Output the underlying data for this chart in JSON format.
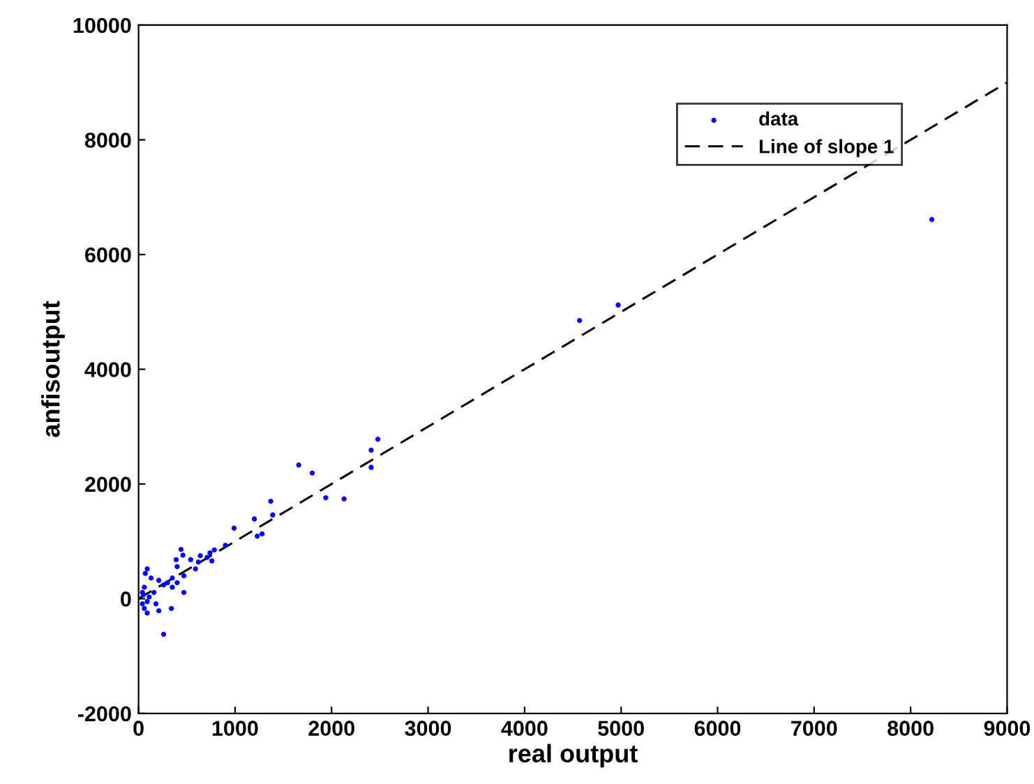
{
  "chart_data": {
    "type": "scatter",
    "xlabel": "real output",
    "ylabel": "anfisoutput",
    "xlim": [
      0,
      9000
    ],
    "ylim": [
      -2000,
      10000
    ],
    "xticks": [
      0,
      1000,
      2000,
      3000,
      4000,
      5000,
      6000,
      7000,
      8000,
      9000
    ],
    "yticks": [
      -2000,
      0,
      2000,
      4000,
      6000,
      8000,
      10000
    ],
    "grid": false,
    "legend": "top right",
    "series": [
      {
        "name": "data",
        "marker": "circle",
        "color": "#0000ff",
        "x": [
          2480,
          2410,
          2410,
          1660,
          1800,
          1940,
          2130,
          1370,
          1390,
          1200,
          1230,
          1280,
          990,
          900,
          785,
          740,
          760,
          640,
          620,
          590,
          440,
          460,
          390,
          400,
          470,
          350,
          300,
          260,
          210,
          470,
          340,
          180,
          210,
          260,
          130,
          90,
          70,
          60,
          50,
          90,
          60,
          90,
          160,
          110,
          40,
          350,
          540,
          710,
          40,
          400,
          4570,
          4970,
          8220
        ],
        "values": [
          2780,
          2590,
          2290,
          2330,
          2190,
          1760,
          1740,
          1700,
          1460,
          1390,
          1090,
          1130,
          1230,
          930,
          850,
          800,
          660,
          750,
          640,
          520,
          860,
          760,
          680,
          560,
          400,
          360,
          280,
          240,
          320,
          110,
          -170,
          -90,
          -210,
          -620,
          360,
          520,
          440,
          200,
          70,
          -50,
          -170,
          -250,
          110,
          30,
          110,
          200,
          680,
          720,
          -90,
          280,
          4850,
          5120,
          6610
        ]
      },
      {
        "name": "Line of slope 1",
        "type": "line",
        "line_style": "dashed",
        "color": "#000000",
        "x": [
          0,
          9000
        ],
        "values": [
          0,
          9000
        ]
      }
    ]
  }
}
